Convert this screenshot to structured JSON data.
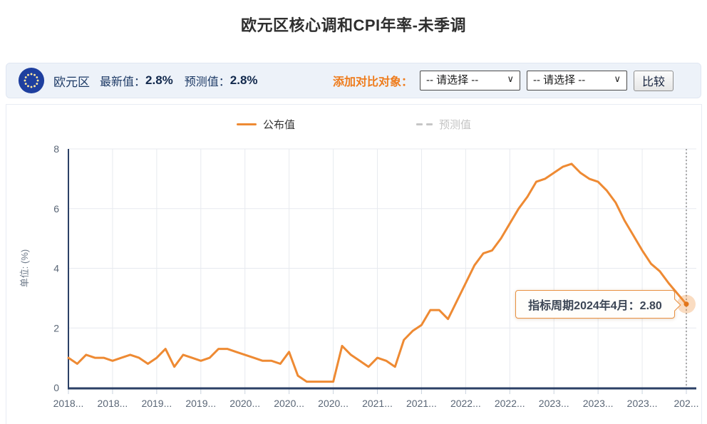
{
  "page_title": "欧元区核心调和CPI年率-未季调",
  "header": {
    "region": "欧元区",
    "latest_label": "最新值：",
    "latest_value": "2.8%",
    "forecast_label": "预测值：",
    "forecast_value": "2.8%",
    "compare_label": "添加对比对象：",
    "select1_value": "-- 请选择 --",
    "select2_value": "-- 请选择 --",
    "compare_button": "比较"
  },
  "legend": {
    "published": "公布值",
    "forecast": "预测值"
  },
  "tooltip": {
    "text": "指标周期2024年4月：2.80"
  },
  "colors": {
    "line_orange": "#ee8a33",
    "dot_orange": "#e2761b",
    "halo_orange": "rgba(238,138,51,0.3)",
    "axis_navy": "#2b4066",
    "grid_gray": "#e7eaef",
    "accent_orange_label": "#ee7c1d",
    "header_bar_bg": "#edf2f9",
    "flag_blue": "#1e3f9f"
  },
  "chart_data": {
    "type": "line",
    "title": "欧元区核心调和CPI年率-未季调",
    "ylabel": "单位: (%)",
    "ylim": [
      0,
      8
    ],
    "yticks": [
      0,
      2,
      4,
      6,
      8
    ],
    "grid": true,
    "legend_position": "top",
    "x_tick_labels": [
      "2018...",
      "2018...",
      "2019...",
      "2019...",
      "2020...",
      "2020...",
      "2020...",
      "2021...",
      "2021...",
      "2022...",
      "2022...",
      "2023...",
      "2023...",
      "2023...",
      "202..."
    ],
    "x_first_month": "2018-06",
    "x_last_month": "2024-04",
    "frequency": "monthly",
    "series": [
      {
        "name": "公布值",
        "color": "#ee8a33",
        "values": [
          1.0,
          0.8,
          1.1,
          1.0,
          1.0,
          0.9,
          1.0,
          1.1,
          1.0,
          0.8,
          1.0,
          1.3,
          0.7,
          1.1,
          1.0,
          0.9,
          1.0,
          1.3,
          1.3,
          1.2,
          1.1,
          1.0,
          0.9,
          0.9,
          0.8,
          1.2,
          0.4,
          0.2,
          0.2,
          0.2,
          0.2,
          1.4,
          1.1,
          0.9,
          0.7,
          1.0,
          0.9,
          0.7,
          1.6,
          1.9,
          2.1,
          2.6,
          2.6,
          2.3,
          2.9,
          3.5,
          4.1,
          4.5,
          4.6,
          5.0,
          5.5,
          6.0,
          6.4,
          6.9,
          7.0,
          7.2,
          7.4,
          7.5,
          7.2,
          7.0,
          6.9,
          6.6,
          6.2,
          5.6,
          5.1,
          4.6,
          4.15,
          3.9,
          3.5,
          3.15,
          2.8
        ]
      },
      {
        "name": "预测值",
        "color": "#c6c6c6",
        "values": []
      }
    ],
    "highlight_point": {
      "x_label": "2024年4月",
      "value": 2.8,
      "tooltip": "指标周期2024年4月：2.80"
    }
  }
}
